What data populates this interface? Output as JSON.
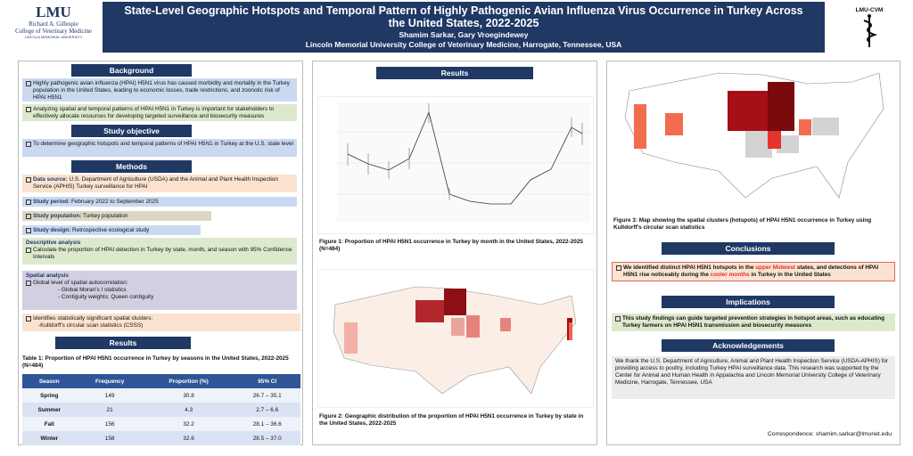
{
  "header": {
    "logo_left": "LMU",
    "logo_left_lines": [
      "Richard A. Gillespie",
      "College of Veterinary Medicine",
      "LINCOLN MEMORIAL UNIVERSITY"
    ],
    "title": "State-Level Geographic Hotspots and Temporal Pattern of Highly Pathogenic Avian Influenza Virus Occurrence in Turkey Across the United States, 2022-2025",
    "authors": "Shamim Sarkar, Gary Vroegindewey",
    "affiliation": "Lincoln Memorial University College of Veterinary Medicine, Harrogate, Tennessee, USA",
    "logo_right": "LMU-CVM"
  },
  "background": {
    "heading": "Background",
    "items": [
      "Highly pathogenic avian influenza (HPAI) H5N1 virus has caused morbidity and mortality in the Turkey population in the United States, leading to economic losses,  trade restrictions, and zoonotic risk of HPAI H5N1",
      "Analyzing spatial and temporal patterns of HPAI H5N1 in Turkey  is important for stakeholders to effectively allocate resources for developing targeted surveillance and biosecurity measures"
    ]
  },
  "objective": {
    "heading": "Study objective",
    "items": [
      "To determine geographic hotspots and temporal patterns of HPAI H5N1 in Turkey at the U.S. state level"
    ]
  },
  "methods": {
    "heading": "Methods",
    "items": [
      {
        "label": "Data source:",
        "text": " U.S. Department of Agriculture (USDA) and the Animal and Plant Health Inspection Service (APHIS) Turkey surveillance for HPAI"
      },
      {
        "label": "Study period:",
        "text": "  February 2022 to September 2025"
      },
      {
        "label": "Study population:",
        "text": "  Turkey population"
      },
      {
        "label": "Study design:",
        "text": " Retrospective ecological study"
      }
    ],
    "descriptive": {
      "title": "Descriptive analysis",
      "text": "Calculate the proportion of  HPAI detection in Turkey by state, month, and season with 95% Confidence Intervals"
    },
    "spatial": {
      "title": "Spatial analysis",
      "lines": [
        "Global level of spatial autocorrelation:",
        "- Global Moran's I statistics",
        "- Contiguity weights: Queen contiguity"
      ]
    },
    "clusters": {
      "lines": [
        "Identifies statistically significant spatial clusters:",
        "-Kulldorff's circular scan statistics (CSSS)"
      ]
    }
  },
  "results_table": {
    "heading": "Results",
    "caption": "Table 1: Proportion of HPAI H5N1 occurrence in Turkey by seasons in the United States, 2022-2025 (N=484)",
    "columns": [
      "Season",
      "Frequency",
      "Proportion (%)",
      "95% CI"
    ],
    "rows": [
      [
        "Spring",
        149,
        30.8,
        "26.7 – 35.1"
      ],
      [
        "Summer",
        21,
        4.3,
        "2.7 – 6.6"
      ],
      [
        "Fall",
        156,
        32.2,
        "28.1 – 36.6"
      ],
      [
        "Winter",
        158,
        32.6,
        "28.5 – 37.0"
      ]
    ]
  },
  "results_figures": {
    "heading": "Results",
    "figure1_caption": "Figure 1: Proportion of HPAI H5N1 occurrence in Turkey by month in the United States, 2022-2025 (N=484)",
    "figure2_caption": "Figure 2: Geographic distribution of the proportion of HPAI H5N1 occurrence in Turkey by state in the United States, 2022-2025"
  },
  "figure3_caption": "Figure 3: Map showing the spatial clusters (hotspots) of HPAI H5N1 occurrence in Turkey using Kulldorff's circular scan statistics",
  "conclusions": {
    "heading": "Conclusions",
    "parts": [
      "We identified distinct HPAI H5N1 hotspots in the ",
      "upper Midwest",
      " states, and detections of HPAI H5N1  rise noticeably during the ",
      "cooler months",
      " in Turkey in the United States"
    ]
  },
  "implications": {
    "heading": "Implications",
    "text": "This study findings can guide targeted  prevention strategies in hotspot areas, such as educating Turkey farmers on HPAI H5N1 transmission and biosecurity measures"
  },
  "acknowledgements": {
    "heading": "Acknowledgements",
    "text": "We thank the U.S. Department of Agriculture, Animal and Plant Health Inspection Service (USDA-APHIS) for providing access to poultry, including Turkey HPAI surveillance data. This research was supported by the Center for Animal and Human Health in Appalachia and Lincoln Memorial University College of Veterinary Medicine, Harrogate, Tennessee, USA"
  },
  "correspondence": "Correspondence:  shamim.sarkar@lmunet.edu"
}
